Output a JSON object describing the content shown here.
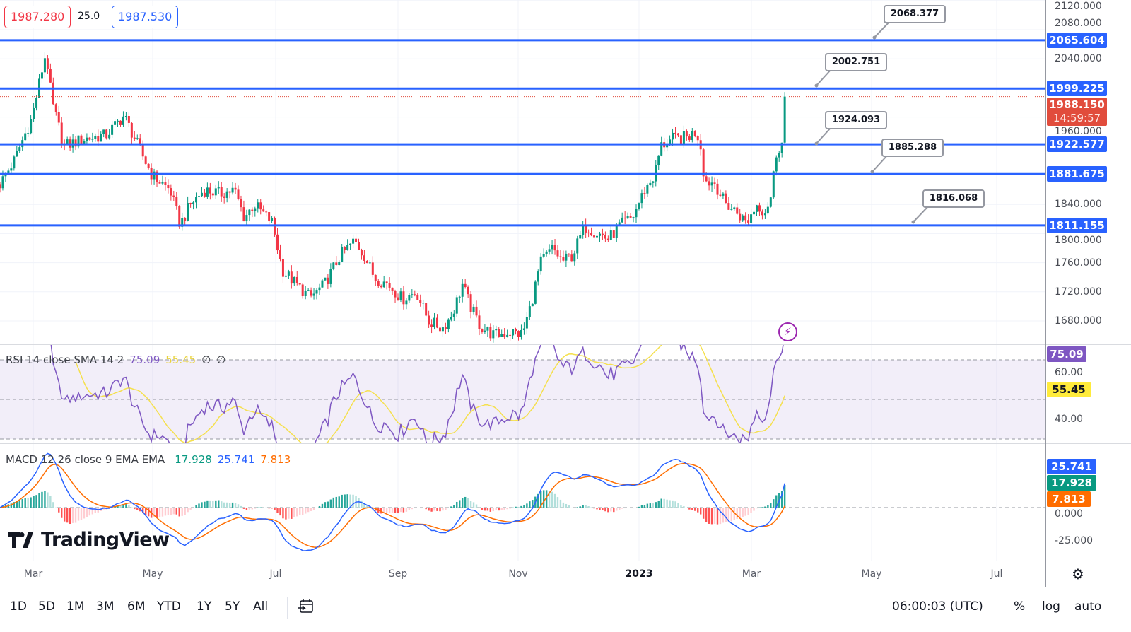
{
  "header": {
    "bid": "1987.280",
    "spread": "25.0",
    "ask": "1987.530"
  },
  "colors": {
    "up": "#089981",
    "down": "#f23645",
    "level": "#2962ff",
    "rsi": "#7e57c2",
    "rsi_sma": "#f5e04e",
    "macd": "#2962ff",
    "signal": "#ff6d00",
    "last_price": "#e14c3c"
  },
  "price_axis": {
    "ticks": [
      "2120.000",
      "2080.000",
      "2040.000",
      "1960.000",
      "1840.000",
      "1800.000",
      "1760.000",
      "1720.000",
      "1680.000"
    ],
    "tick_values": [
      2120,
      2080,
      2040,
      1960,
      1840,
      1800,
      1760,
      1720,
      1680
    ]
  },
  "levels": [
    {
      "value": 2065.604,
      "label": "2065.604",
      "callout": "2068.377"
    },
    {
      "value": 1999.225,
      "label": "1999.225",
      "callout": "2002.751"
    },
    {
      "value": 1922.577,
      "label": "1922.577",
      "callout": "1924.093"
    },
    {
      "value": 1881.675,
      "label": "1881.675",
      "callout": "1885.288"
    },
    {
      "value": 1811.155,
      "label": "1811.155",
      "callout": "1816.068"
    }
  ],
  "last_price": {
    "value": 1988.15,
    "label": "1988.150",
    "countdown": "14:59:57"
  },
  "rsi": {
    "legend": "RSI 14 close SMA 14 2",
    "value": "75.09",
    "sma": "55.45",
    "extra1": "∅",
    "extra2": "∅",
    "ticks": [
      "60.00",
      "40.00"
    ],
    "tick_values": [
      60,
      40
    ],
    "bands": [
      70,
      50,
      30
    ]
  },
  "macd": {
    "legend": "MACD 12 26 close 9 EMA EMA",
    "hist": "17.928",
    "macd": "25.741",
    "signal": "7.813",
    "ticks": [
      "0.000",
      "-25.000"
    ],
    "tick_values": [
      0,
      -25
    ]
  },
  "time_axis": {
    "labels": [
      "Mar",
      "May",
      "Jul",
      "Sep",
      "Nov",
      "2023",
      "Mar",
      "May",
      "Jul"
    ]
  },
  "toolbar": {
    "ranges": [
      "1D",
      "5D",
      "1M",
      "3M",
      "6M",
      "YTD",
      "1Y",
      "5Y",
      "All"
    ],
    "clock": "06:00:03 (UTC)",
    "percent": "%",
    "log": "log",
    "auto": "auto"
  },
  "logo": "TradingView",
  "chart_data": {
    "type": "candlestick",
    "title": "",
    "start_date": "2022-02-14",
    "price_range": [
      1660,
      2130
    ],
    "keypoints_day_close": [
      [
        0,
        1868
      ],
      [
        7,
        1900
      ],
      [
        16,
        1960
      ],
      [
        23,
        2050
      ],
      [
        26,
        1980
      ],
      [
        32,
        1920
      ],
      [
        42,
        1930
      ],
      [
        53,
        1935
      ],
      [
        62,
        1962
      ],
      [
        69,
        1920
      ],
      [
        76,
        1880
      ],
      [
        85,
        1860
      ],
      [
        90,
        1812
      ],
      [
        95,
        1840
      ],
      [
        102,
        1860
      ],
      [
        110,
        1855
      ],
      [
        117,
        1860
      ],
      [
        122,
        1822
      ],
      [
        127,
        1840
      ],
      [
        136,
        1815
      ],
      [
        141,
        1750
      ],
      [
        148,
        1730
      ],
      [
        155,
        1712
      ],
      [
        162,
        1730
      ],
      [
        170,
        1770
      ],
      [
        177,
        1790
      ],
      [
        182,
        1770
      ],
      [
        187,
        1740
      ],
      [
        194,
        1730
      ],
      [
        201,
        1710
      ],
      [
        208,
        1720
      ],
      [
        214,
        1680
      ],
      [
        221,
        1670
      ],
      [
        226,
        1690
      ],
      [
        231,
        1730
      ],
      [
        235,
        1700
      ],
      [
        240,
        1672
      ],
      [
        247,
        1660
      ],
      [
        254,
        1665
      ],
      [
        261,
        1662
      ],
      [
        265,
        1700
      ],
      [
        270,
        1760
      ],
      [
        276,
        1780
      ],
      [
        281,
        1762
      ],
      [
        286,
        1770
      ],
      [
        292,
        1810
      ],
      [
        299,
        1800
      ],
      [
        304,
        1792
      ],
      [
        309,
        1810
      ],
      [
        316,
        1822
      ],
      [
        322,
        1860
      ],
      [
        327,
        1880
      ],
      [
        330,
        1920
      ],
      [
        336,
        1930
      ],
      [
        343,
        1932
      ],
      [
        348,
        1940
      ],
      [
        350,
        1920
      ],
      [
        352,
        1872
      ],
      [
        357,
        1870
      ],
      [
        362,
        1842
      ],
      [
        367,
        1832
      ],
      [
        373,
        1815
      ],
      [
        378,
        1840
      ],
      [
        382,
        1830
      ],
      [
        385,
        1850
      ],
      [
        388,
        1915
      ],
      [
        391,
        1925
      ],
      [
        393,
        1988
      ]
    ]
  }
}
